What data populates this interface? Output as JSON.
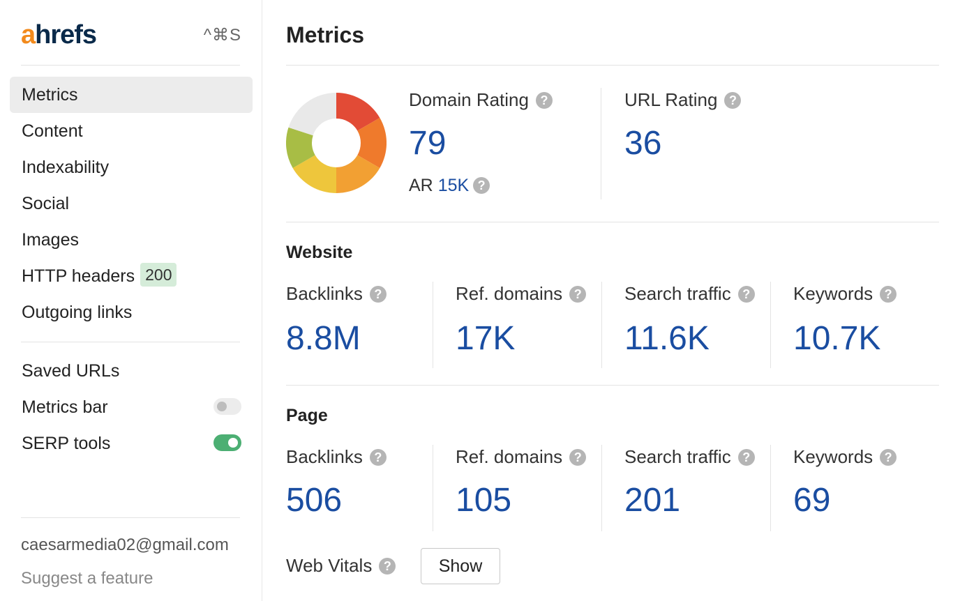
{
  "sidebar": {
    "logo_accent": "a",
    "logo_rest": "hrefs",
    "shortcut": "^⌘S",
    "nav": [
      {
        "label": "Metrics",
        "active": true
      },
      {
        "label": "Content"
      },
      {
        "label": "Indexability"
      },
      {
        "label": "Social"
      },
      {
        "label": "Images"
      },
      {
        "label": "HTTP headers",
        "badge": "200"
      },
      {
        "label": "Outgoing links"
      }
    ],
    "tools": [
      {
        "label": "Saved URLs"
      },
      {
        "label": "Metrics bar",
        "toggle": false
      },
      {
        "label": "SERP tools",
        "toggle": true
      }
    ],
    "email": "caesarmedia02@gmail.com",
    "suggest": "Suggest a feature"
  },
  "main": {
    "title": "Metrics",
    "domain_rating": {
      "label": "Domain Rating",
      "value": "79",
      "ar_label": "AR",
      "ar_value": "15K"
    },
    "url_rating": {
      "label": "URL Rating",
      "value": "36"
    },
    "website": {
      "title": "Website",
      "metrics": [
        {
          "label": "Backlinks",
          "value": "8.8M"
        },
        {
          "label": "Ref. domains",
          "value": "17K"
        },
        {
          "label": "Search traffic",
          "value": "11.6K"
        },
        {
          "label": "Keywords",
          "value": "10.7K"
        }
      ]
    },
    "page": {
      "title": "Page",
      "metrics": [
        {
          "label": "Backlinks",
          "value": "506"
        },
        {
          "label": "Ref. domains",
          "value": "105"
        },
        {
          "label": "Search traffic",
          "value": "201"
        },
        {
          "label": "Keywords",
          "value": "69"
        }
      ]
    },
    "web_vitals": {
      "label": "Web Vitals",
      "button": "Show"
    },
    "help_glyph": "?"
  },
  "colors": {
    "accent_blue": "#1a4da1",
    "logo_orange": "#f28a1c",
    "toggle_on": "#4caf73",
    "badge_green": "#d5ecd9"
  }
}
